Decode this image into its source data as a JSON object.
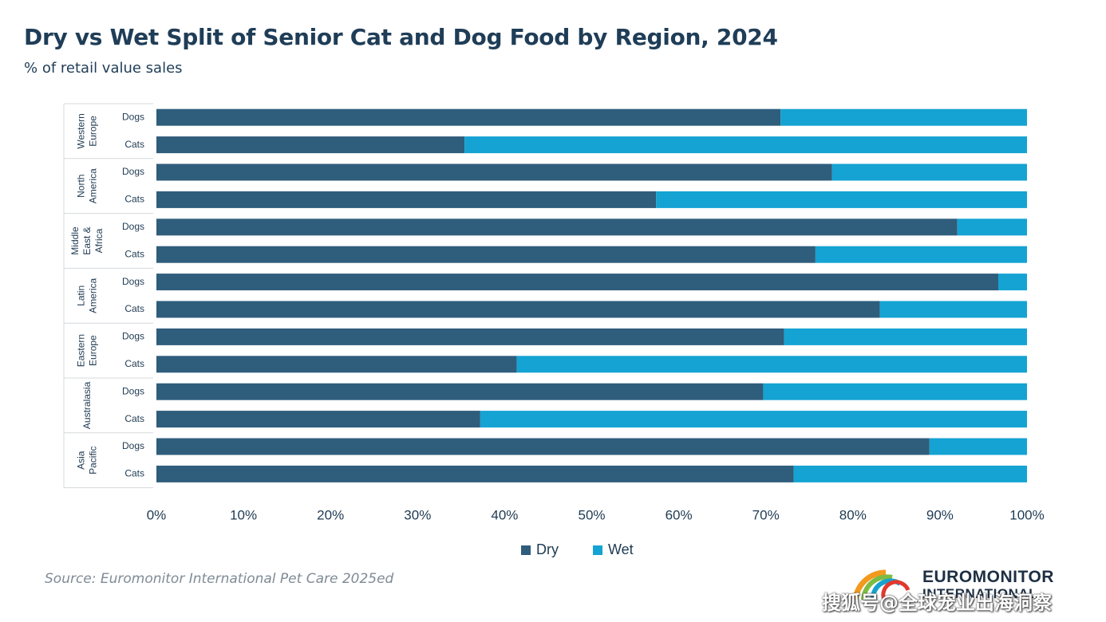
{
  "title": "Dry vs Wet Split of Senior Cat and Dog Food by Region, 2024",
  "subtitle": "% of retail value sales",
  "source": "Source: Euromonitor International Pet Care 2025ed",
  "logo": {
    "line1": "EUROMONITOR",
    "line2": "INTERNATIONAL"
  },
  "watermark": "搜狐号@全球宠业出海洞察",
  "colors": {
    "dry": "#2f5d7c",
    "wet": "#14a3d3"
  },
  "chart_data": {
    "type": "bar",
    "orientation": "horizontal",
    "stacked": true,
    "title": "Dry vs Wet Split of Senior Cat and Dog Food by Region, 2024",
    "subtitle": "% of retail value sales",
    "groups": [
      {
        "region": "Western Europe",
        "region_lines": [
          "Western",
          "Europe"
        ],
        "categories": [
          "Dogs",
          "Cats"
        ],
        "dry": [
          71.7,
          35.4
        ]
      },
      {
        "region": "North America",
        "region_lines": [
          "North",
          "America"
        ],
        "categories": [
          "Dogs",
          "Cats"
        ],
        "dry": [
          77.6,
          57.4
        ]
      },
      {
        "region": "Middle East & Africa",
        "region_lines": [
          "Middle",
          "East &",
          "Africa"
        ],
        "categories": [
          "Dogs",
          "Cats"
        ],
        "dry": [
          92.0,
          75.7
        ]
      },
      {
        "region": "Latin America",
        "region_lines": [
          "Latin",
          "America"
        ],
        "categories": [
          "Dogs",
          "Cats"
        ],
        "dry": [
          96.7,
          83.1
        ]
      },
      {
        "region": "Eastern Europe",
        "region_lines": [
          "Eastern",
          "Europe"
        ],
        "categories": [
          "Dogs",
          "Cats"
        ],
        "dry": [
          72.1,
          41.4
        ]
      },
      {
        "region": "Australasia",
        "region_lines": [
          "Australasia"
        ],
        "categories": [
          "Dogs",
          "Cats"
        ],
        "dry": [
          69.7,
          37.2
        ]
      },
      {
        "region": "Asia Pacific",
        "region_lines": [
          "Asia",
          "Pacific"
        ],
        "categories": [
          "Dogs",
          "Cats"
        ],
        "dry": [
          88.8,
          73.2
        ]
      }
    ],
    "series": [
      {
        "name": "Dry",
        "values": [
          71.7,
          35.4,
          77.6,
          57.4,
          92.0,
          75.7,
          96.7,
          83.1,
          72.1,
          41.4,
          69.7,
          37.2,
          88.8,
          73.2
        ]
      },
      {
        "name": "Wet",
        "values": [
          28.3,
          64.6,
          22.4,
          42.6,
          8.0,
          24.3,
          3.3,
          16.9,
          27.9,
          58.6,
          30.3,
          62.8,
          11.2,
          26.8
        ]
      }
    ],
    "xlim": [
      0,
      100
    ],
    "xticks": [
      "0%",
      "10%",
      "20%",
      "30%",
      "40%",
      "50%",
      "60%",
      "70%",
      "80%",
      "90%",
      "100%"
    ],
    "grid": false,
    "legend": {
      "position": "bottom",
      "items": [
        "Dry",
        "Wet"
      ]
    }
  }
}
